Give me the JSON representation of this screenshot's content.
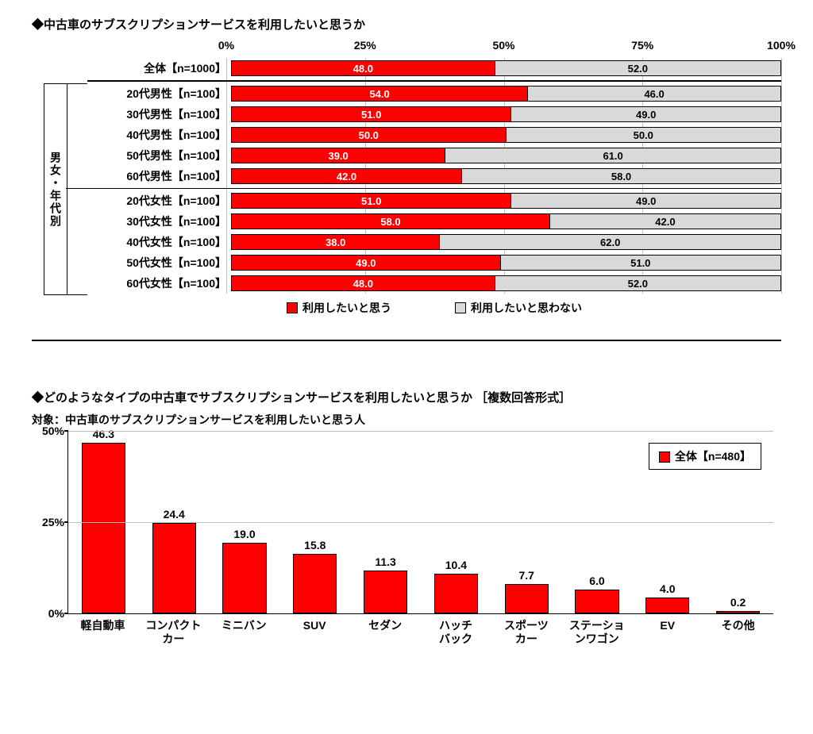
{
  "chart1": {
    "title": "◆中古車のサブスクリプションサービスを利用したいと思うか",
    "type": "stacked_horizontal_bar",
    "xlim": [
      0,
      100
    ],
    "xticks": [
      0,
      25,
      50,
      75,
      100
    ],
    "xtick_labels": [
      "0%",
      "25%",
      "50%",
      "75%",
      "100%"
    ],
    "series": [
      {
        "name": "利用したいと思う",
        "color": "#ff0000",
        "text_color": "#ffffff"
      },
      {
        "name": "利用したいと思わない",
        "color": "#d9d9d9",
        "text_color": "#000000"
      }
    ],
    "group_label": "男女・年代別",
    "total_row": {
      "label": "全体【n=1000】",
      "values": [
        48.0,
        52.0
      ]
    },
    "rows": [
      {
        "label": "20代男性【n=100】",
        "values": [
          54.0,
          46.0
        ]
      },
      {
        "label": "30代男性【n=100】",
        "values": [
          51.0,
          49.0
        ]
      },
      {
        "label": "40代男性【n=100】",
        "values": [
          50.0,
          50.0
        ]
      },
      {
        "label": "50代男性【n=100】",
        "values": [
          39.0,
          61.0
        ]
      },
      {
        "label": "60代男性【n=100】",
        "values": [
          42.0,
          58.0
        ]
      },
      {
        "label": "20代女性【n=100】",
        "values": [
          51.0,
          49.0
        ]
      },
      {
        "label": "30代女性【n=100】",
        "values": [
          58.0,
          42.0
        ]
      },
      {
        "label": "40代女性【n=100】",
        "values": [
          38.0,
          62.0
        ]
      },
      {
        "label": "50代女性【n=100】",
        "values": [
          49.0,
          51.0
        ]
      },
      {
        "label": "60代女性【n=100】",
        "values": [
          48.0,
          52.0
        ]
      }
    ],
    "legend": {
      "items": [
        "利用したいと思う",
        "利用したいと思わない"
      ]
    },
    "title_fontsize": 15,
    "label_fontsize": 14,
    "value_fontsize": 13,
    "grid_color": "#bfbfbf",
    "background_color": "#ffffff"
  },
  "chart2": {
    "title": "◆どのようなタイプの中古車でサブスクリプションサービスを利用したいと思うか ［複数回答形式］",
    "subtitle": "対象：中古車のサブスクリプションサービスを利用したいと思う人",
    "type": "vertical_bar",
    "ylim": [
      0,
      50
    ],
    "yticks": [
      0,
      25,
      50
    ],
    "ytick_labels": [
      "0%",
      "25%",
      "50%"
    ],
    "bar_color": "#ff0000",
    "border_color": "#000000",
    "grid_color": "#bfbfbf",
    "bar_width_ratio": 0.6,
    "categories": [
      "軽自動車",
      "コンパクト\nカー",
      "ミニバン",
      "SUV",
      "セダン",
      "ハッチ\nバック",
      "スポーツ\nカー",
      "ステーショ\nンワゴン",
      "EV",
      "その他"
    ],
    "values": [
      46.3,
      24.4,
      19.0,
      15.8,
      11.3,
      10.4,
      7.7,
      6.0,
      4.0,
      0.2
    ],
    "legend_label": "全体【n=480】",
    "title_fontsize": 15,
    "subtitle_fontsize": 14,
    "label_fontsize": 14,
    "background_color": "#ffffff"
  }
}
